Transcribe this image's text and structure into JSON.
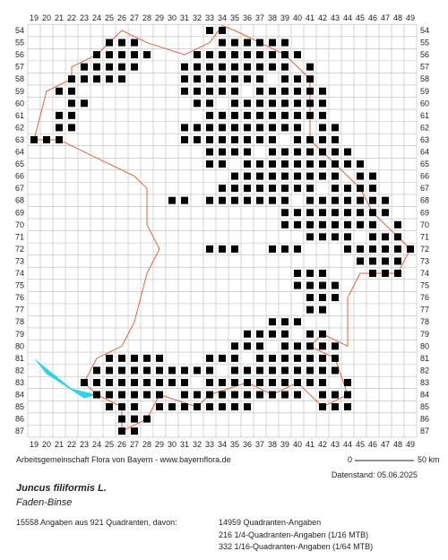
{
  "map": {
    "columns": [
      19,
      20,
      21,
      22,
      23,
      24,
      25,
      26,
      27,
      28,
      29,
      30,
      31,
      32,
      33,
      34,
      35,
      36,
      37,
      38,
      39,
      40,
      41,
      42,
      43,
      44,
      45,
      46,
      47,
      48,
      49
    ],
    "rows": [
      54,
      55,
      56,
      57,
      58,
      59,
      60,
      61,
      62,
      63,
      64,
      65,
      66,
      67,
      68,
      69,
      70,
      71,
      72,
      73,
      74,
      75,
      76,
      77,
      78,
      79,
      80,
      81,
      82,
      83,
      84,
      85,
      86,
      87
    ]
  },
  "credit": "Arbeitsgemeinschaft Flora von Bayern - www.bayernflora.de",
  "scale": {
    "start": "0",
    "end": "50 km"
  },
  "date": "Datenstand: 05.06.2025",
  "species": {
    "name": "Juncus filiformis L.",
    "common": "Faden-Binse"
  },
  "stats": {
    "summary": "15558 Angaben aus 921 Quadranten, davon:",
    "lines": [
      "14959 Quadranten-Angaben",
      "216 1/4-Quadranten-Angaben (1/16 MTB)",
      "332 1/16-Quadranten-Angaben (1/64 MTB)"
    ]
  }
}
